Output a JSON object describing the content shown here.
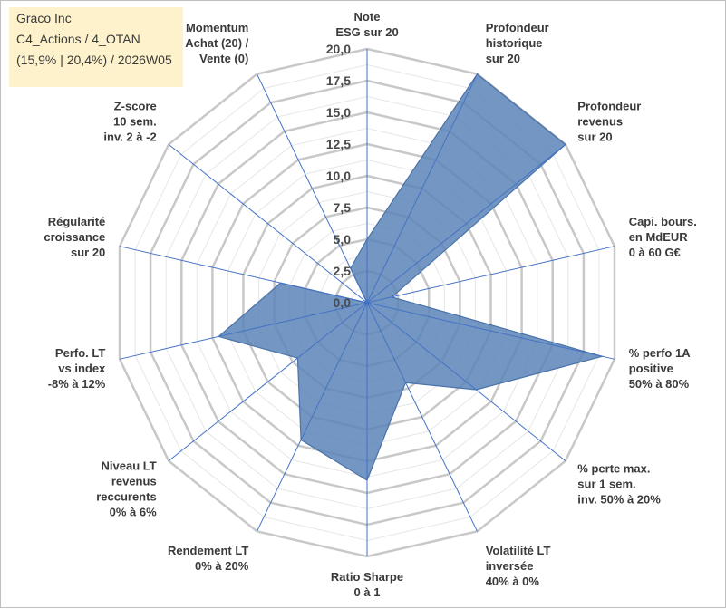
{
  "header": {
    "line1": "Graco Inc",
    "line2": "C4_Actions / 4_OTAN",
    "line3": "(15,9% | 20,4%) / 2026W05"
  },
  "chart_data": {
    "type": "radar",
    "title": "Graco Inc",
    "rlim": [
      0,
      20
    ],
    "ticks": [
      "0,0",
      "2,5",
      "5,0",
      "7,5",
      "10,0",
      "12,5",
      "15,0",
      "17,5",
      "20,0"
    ],
    "axes": [
      [
        "Note",
        "ESG sur 20"
      ],
      [
        "Profondeur",
        "historique",
        "sur 20"
      ],
      [
        "Profondeur",
        "revenus",
        "sur 20"
      ],
      [
        "Capi. bours.",
        "en MdEUR",
        "0 à 60 G€"
      ],
      [
        "% perfo 1A",
        "positive",
        "50% à 80%"
      ],
      [
        "% perte max.",
        "sur 1 sem.",
        "inv. 50% à 20%"
      ],
      [
        "Volatilité LT",
        "inversée",
        "40% à 0%"
      ],
      [
        "Ratio Sharpe",
        "0 à 1"
      ],
      [
        "Rendement LT",
        "0% à 20%"
      ],
      [
        "Niveau LT",
        "revenus",
        "reccurents",
        "0% à 6%"
      ],
      [
        "Perfo. LT",
        "vs index",
        "-8% à 12%"
      ],
      [
        "Régularité",
        "croissance",
        "sur 20"
      ],
      [
        "Z-score",
        "10 sem.",
        "inv. 2 à -2"
      ],
      [
        "Momentum",
        "Achat (20) /",
        "Vente (0)"
      ]
    ],
    "series": [
      {
        "name": "Graco Inc",
        "color": "#5b84b8",
        "values": [
          5,
          20,
          20,
          2,
          19,
          11,
          7,
          14,
          12,
          7,
          12,
          7,
          0,
          3
        ]
      }
    ]
  }
}
